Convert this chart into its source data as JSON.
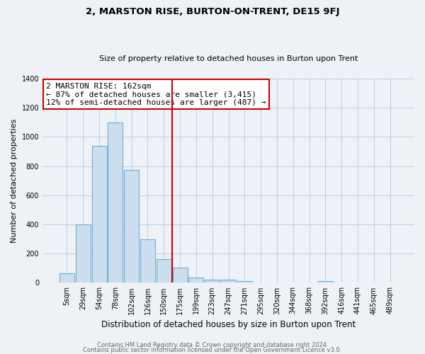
{
  "title": "2, MARSTON RISE, BURTON-ON-TRENT, DE15 9FJ",
  "subtitle": "Size of property relative to detached houses in Burton upon Trent",
  "xlabel": "Distribution of detached houses by size in Burton upon Trent",
  "ylabel": "Number of detached properties",
  "bin_labels": [
    "5sqm",
    "29sqm",
    "54sqm",
    "78sqm",
    "102sqm",
    "126sqm",
    "150sqm",
    "175sqm",
    "199sqm",
    "223sqm",
    "247sqm",
    "271sqm",
    "295sqm",
    "320sqm",
    "344sqm",
    "368sqm",
    "392sqm",
    "416sqm",
    "441sqm",
    "465sqm",
    "489sqm"
  ],
  "bar_values": [
    65,
    400,
    940,
    1100,
    775,
    300,
    160,
    105,
    38,
    20,
    20,
    10,
    0,
    0,
    0,
    0,
    12,
    0,
    0,
    0,
    0
  ],
  "bar_color": "#ccdded",
  "bar_edge_color": "#6baed6",
  "ylim": [
    0,
    1400
  ],
  "yticks": [
    0,
    200,
    400,
    600,
    800,
    1000,
    1200,
    1400
  ],
  "vline_x_idx": 6.5,
  "vline_color": "#cc0000",
  "annotation_line1": "2 MARSTON RISE: 162sqm",
  "annotation_line2": "← 87% of detached houses are smaller (3,415)",
  "annotation_line3": "12% of semi-detached houses are larger (487) →",
  "annotation_box_color": "#ffffff",
  "annotation_box_edgecolor": "#cc0000",
  "footer1": "Contains HM Land Registry data © Crown copyright and database right 2024.",
  "footer2": "Contains public sector information licensed under the Open Government Licence v3.0.",
  "background_color": "#eef2f7",
  "plot_background": "#eef2f7",
  "grid_color": "#b8cfe0",
  "title_fontsize": 9.5,
  "subtitle_fontsize": 8,
  "ylabel_fontsize": 8,
  "xlabel_fontsize": 8.5,
  "tick_fontsize": 7,
  "footer_fontsize": 6,
  "annotation_fontsize": 8
}
